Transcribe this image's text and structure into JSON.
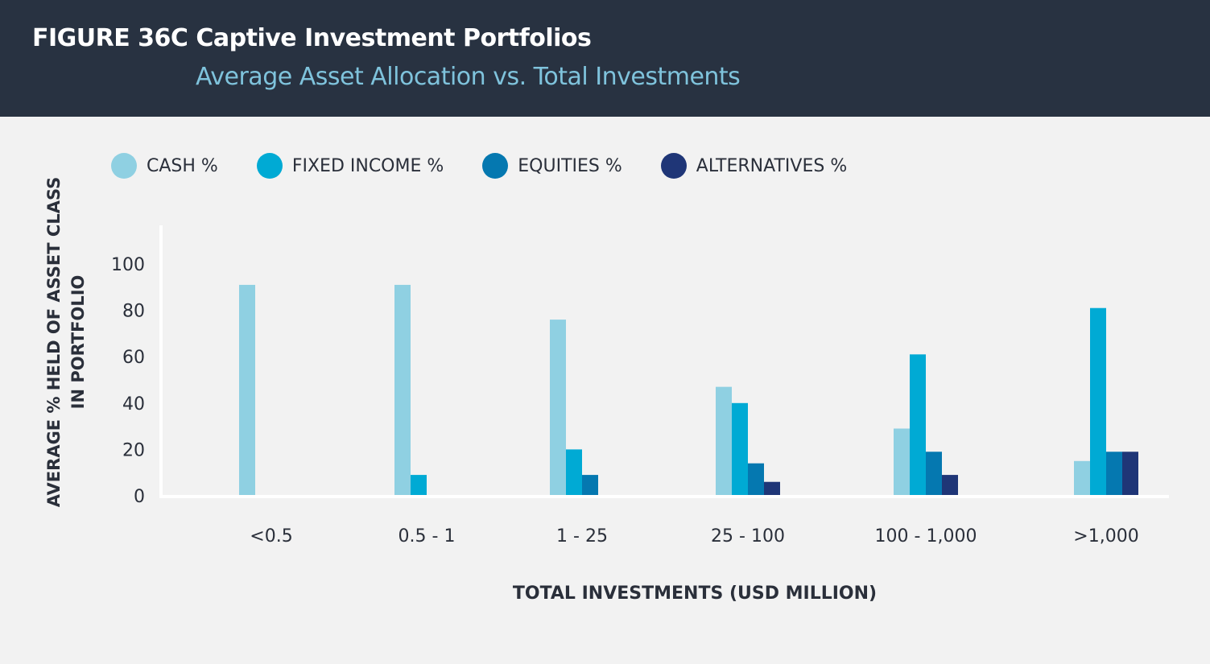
{
  "header": {
    "figure": "FIGURE 36C  Captive Investment Portfolios",
    "subtitle": "Average Asset Allocation vs. Total Investments"
  },
  "chart_data": {
    "type": "bar",
    "title": "Captive Investment Portfolios",
    "subtitle": "Average Asset Allocation vs. Total Investments",
    "xlabel": "TOTAL INVESTMENTS (USD MILLION)",
    "ylabel": [
      "AVERAGE % HELD OF ASSET CLASS",
      "IN PORTFOLIO"
    ],
    "ylim": [
      0,
      100
    ],
    "yticks": [
      "0",
      "20",
      "40",
      "60",
      "80",
      "100"
    ],
    "grid": false,
    "legend_position": "top",
    "categories": [
      "<0.5",
      "0.5 - 1",
      "1 - 25",
      "25 - 100",
      "100 - 1,000",
      ">1,000"
    ],
    "series": [
      {
        "name": "CASH %",
        "color": "#8fd0e2",
        "values": [
          91,
          91,
          76,
          47,
          29,
          15
        ]
      },
      {
        "name": "FIXED INCOME %",
        "color": "#00aad4",
        "values": [
          0,
          9,
          20,
          40,
          61,
          81
        ]
      },
      {
        "name": "EQUITIES %",
        "color": "#0578b0",
        "values": [
          0,
          0,
          9,
          14,
          19,
          19
        ]
      },
      {
        "name": "ALTERNATIVES %",
        "color": "#1f3677",
        "values": [
          0,
          0,
          0,
          6,
          9,
          19
        ]
      }
    ]
  }
}
